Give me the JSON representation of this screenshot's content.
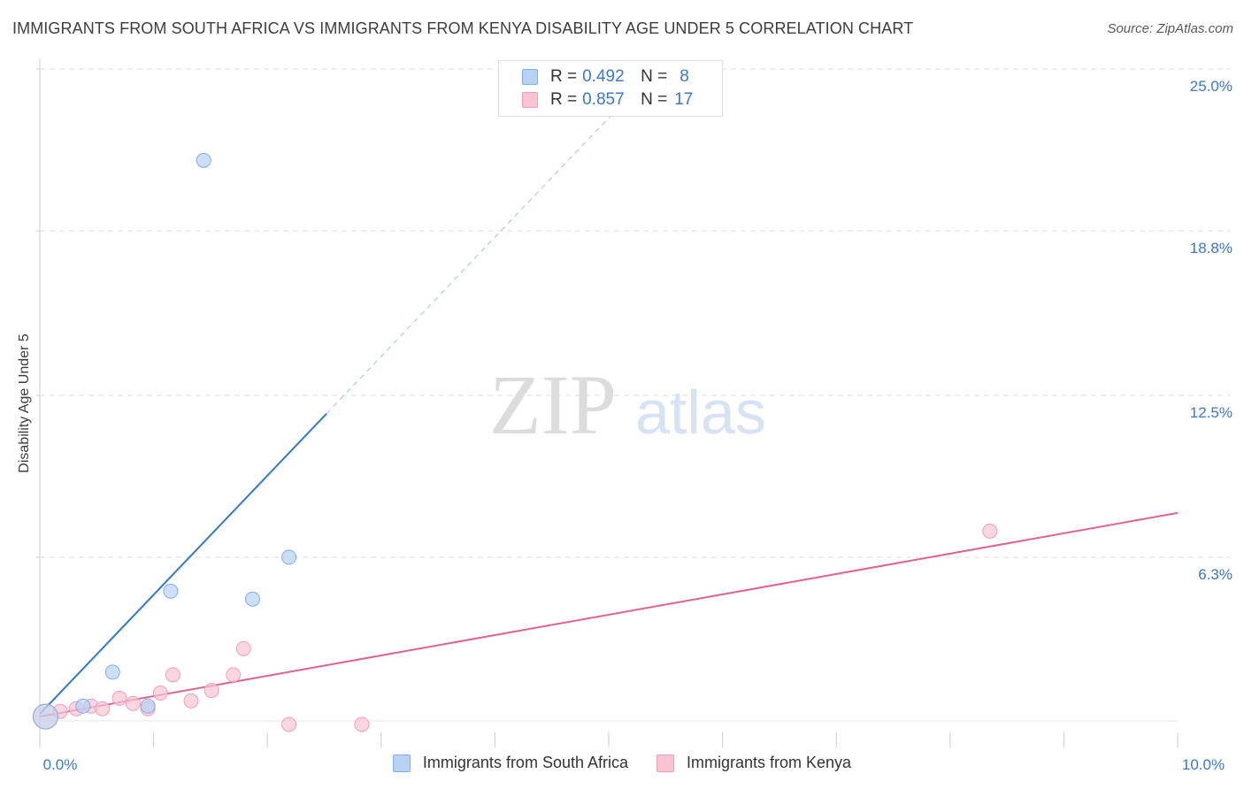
{
  "title": "IMMIGRANTS FROM SOUTH AFRICA VS IMMIGRANTS FROM KENYA DISABILITY AGE UNDER 5 CORRELATION CHART",
  "source": "Source: ZipAtlas.com",
  "watermark": {
    "zip": "ZIP",
    "atlas": "atlas"
  },
  "legend_top": [
    {
      "r_label": "R =",
      "r_value": "0.492",
      "n_label": "N =",
      "n_value": "8"
    },
    {
      "r_label": "R =",
      "r_value": "0.857",
      "n_label": "N =",
      "n_value": "17"
    }
  ],
  "colors": {
    "south_africa_fill": "#b8d2f3",
    "south_africa_stroke": "#7faee6",
    "south_africa_line": "#2f78d6",
    "kenya_fill": "#f8c4d4",
    "kenya_stroke": "#ee9fb8",
    "kenya_line": "#e0638f",
    "tick_label": "#3b78c7",
    "grid": "#dddddd"
  },
  "chart_data": {
    "type": "scatter",
    "title": "IMMIGRANTS FROM SOUTH AFRICA VS IMMIGRANTS FROM KENYA DISABILITY AGE UNDER 5 CORRELATION CHART",
    "xlabel": "",
    "ylabel": "Disability Age Under 5",
    "xlim": [
      0,
      10
    ],
    "ylim": [
      0,
      25
    ],
    "x_tick_labels": [
      {
        "value": 0,
        "label": "0.0%"
      },
      {
        "value": 10,
        "label": "10.0%"
      }
    ],
    "y_tick_labels": [
      {
        "value": 6.3,
        "label": "6.3%"
      },
      {
        "value": 12.5,
        "label": "12.5%"
      },
      {
        "value": 18.8,
        "label": "18.8%"
      },
      {
        "value": 25.0,
        "label": "25.0%"
      }
    ],
    "grid": true,
    "legend_position": "bottom",
    "series": [
      {
        "name": "Immigrants from South Africa",
        "r": 0.492,
        "n": 8,
        "points": [
          {
            "x": 0.05,
            "y": 0.2,
            "big": true
          },
          {
            "x": 0.38,
            "y": 0.6
          },
          {
            "x": 0.64,
            "y": 1.9
          },
          {
            "x": 0.95,
            "y": 0.6
          },
          {
            "x": 1.15,
            "y": 5.0
          },
          {
            "x": 1.44,
            "y": 21.5
          },
          {
            "x": 1.87,
            "y": 4.7
          },
          {
            "x": 2.19,
            "y": 6.3
          }
        ],
        "trend": {
          "x0": 0.0,
          "y0": 0.3,
          "x1": 2.52,
          "y1": 11.8,
          "dash_x1": 5.3,
          "dash_y1": 24.5
        }
      },
      {
        "name": "Immigrants from Kenya",
        "r": 0.857,
        "n": 17,
        "points": [
          {
            "x": 0.05,
            "y": 0.2,
            "big": true
          },
          {
            "x": 0.18,
            "y": 0.4
          },
          {
            "x": 0.32,
            "y": 0.5
          },
          {
            "x": 0.45,
            "y": 0.6
          },
          {
            "x": 0.55,
            "y": 0.5
          },
          {
            "x": 0.7,
            "y": 0.9
          },
          {
            "x": 0.82,
            "y": 0.7
          },
          {
            "x": 0.95,
            "y": 0.5
          },
          {
            "x": 1.06,
            "y": 1.1
          },
          {
            "x": 1.17,
            "y": 1.8
          },
          {
            "x": 1.33,
            "y": 0.8
          },
          {
            "x": 1.51,
            "y": 1.2
          },
          {
            "x": 1.7,
            "y": 1.8
          },
          {
            "x": 1.79,
            "y": 2.8
          },
          {
            "x": 2.19,
            "y": -0.1
          },
          {
            "x": 2.83,
            "y": -0.1
          },
          {
            "x": 8.35,
            "y": 7.3
          }
        ],
        "trend": {
          "x0": 0.0,
          "y0": 0.2,
          "x1": 10.0,
          "y1": 8.0
        }
      }
    ]
  }
}
